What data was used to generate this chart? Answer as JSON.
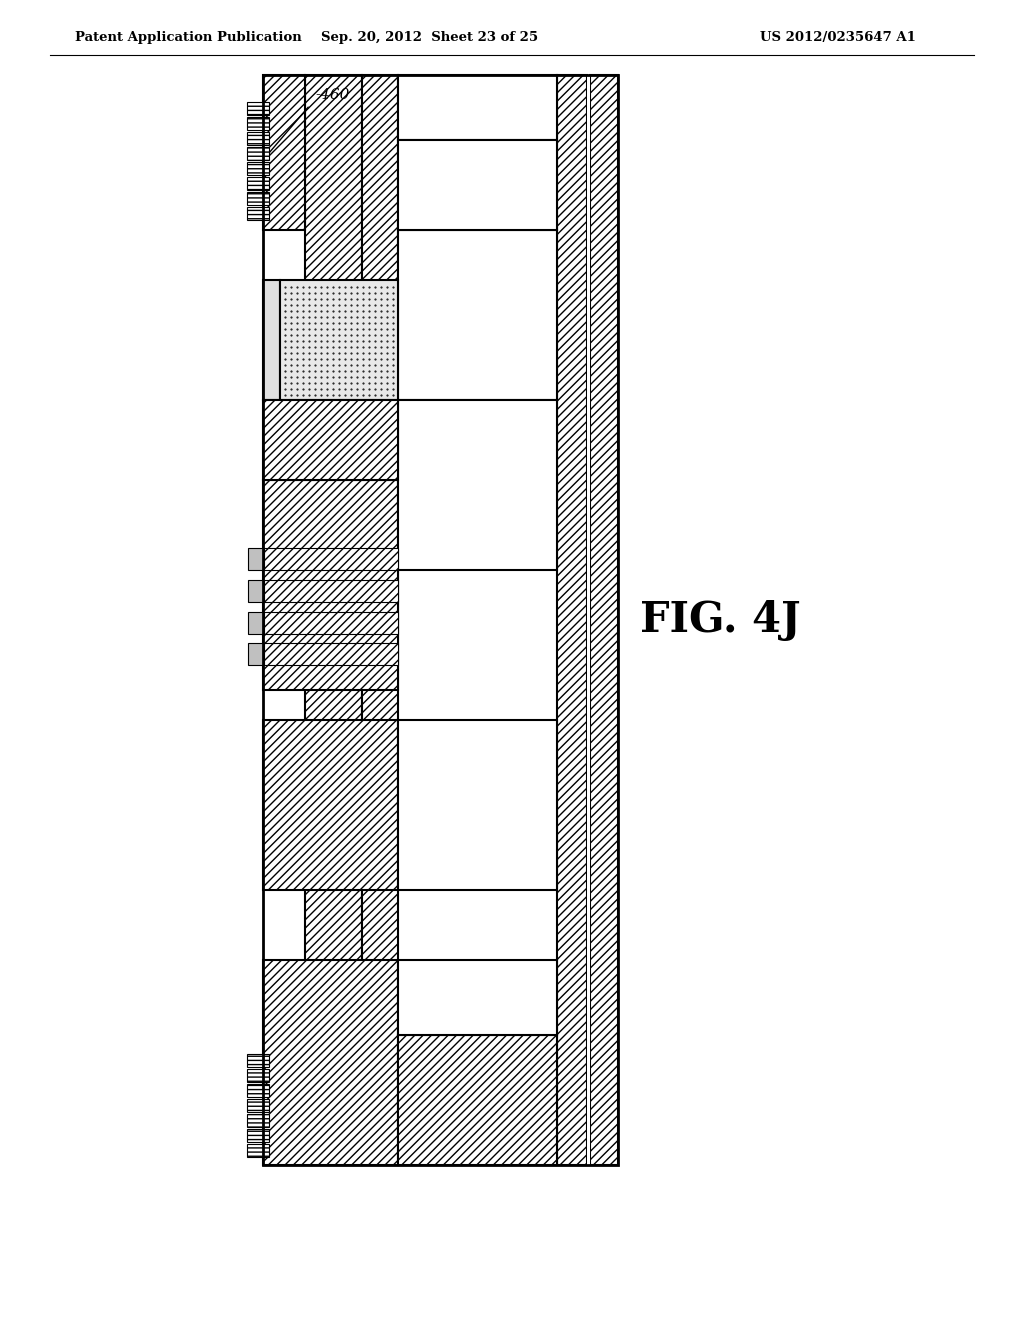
{
  "title_left": "Patent Application Publication",
  "title_center": "Sep. 20, 2012  Sheet 23 of 25",
  "title_right": "US 2012/0235647 A1",
  "fig_label": "FIG. 4J",
  "annotation_460": "-460",
  "background_color": "#ffffff",
  "line_color": "#000000"
}
